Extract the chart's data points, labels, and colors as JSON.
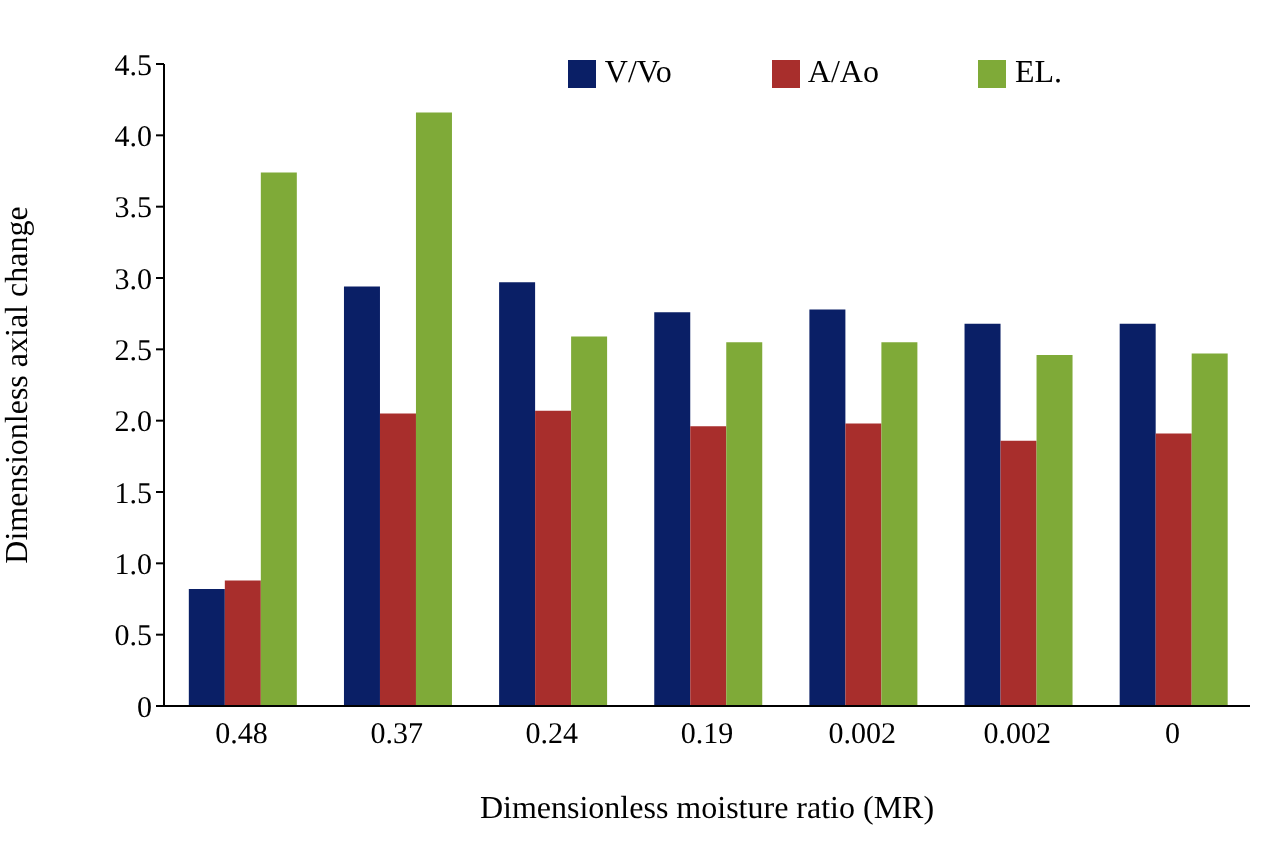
{
  "chart_data": {
    "type": "bar",
    "xlabel": "Dimensionless moisture ratio (MR)",
    "ylabel": "Dimensionless axial change",
    "categories": [
      "0.48",
      "0.37",
      "0.24",
      "0.19",
      "0.002",
      "0.002",
      "0"
    ],
    "series": [
      {
        "name": "V/Vo",
        "color": "#0a1f66",
        "values": [
          0.82,
          2.94,
          2.97,
          2.76,
          2.78,
          2.68,
          2.68
        ]
      },
      {
        "name": "A/Ao",
        "color": "#a82e2c",
        "values": [
          0.88,
          2.05,
          2.07,
          1.96,
          1.98,
          1.86,
          1.91
        ]
      },
      {
        "name": "EL.",
        "color": "#7faa38",
        "values": [
          3.74,
          4.16,
          2.59,
          2.55,
          2.55,
          2.46,
          2.47
        ]
      }
    ],
    "ylim": [
      0,
      4.5
    ],
    "yticks": [
      0,
      0.5,
      {
        "value": 1,
        "label": "1.0"
      },
      1.5,
      {
        "value": 2,
        "label": "2.0"
      },
      2.5,
      {
        "value": 3,
        "label": "3.0"
      },
      3.5,
      {
        "value": 4,
        "label": "4.0"
      },
      4.5
    ],
    "grid": false,
    "legend": "top right"
  }
}
